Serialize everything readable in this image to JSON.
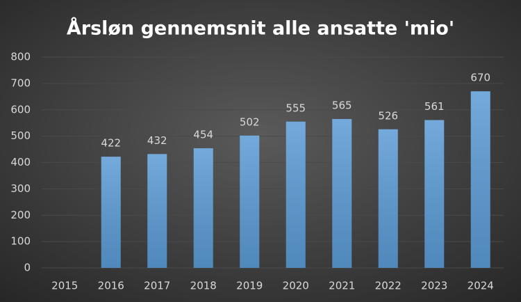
{
  "chart_data": {
    "type": "bar",
    "title": "Årsløn gennemsnit alle ansatte 'mio'",
    "categories": [
      "2015",
      "2016",
      "2017",
      "2018",
      "2019",
      "2020",
      "2021",
      "2022",
      "2023",
      "2024"
    ],
    "values": [
      null,
      422,
      432,
      454,
      502,
      555,
      565,
      526,
      561,
      670
    ],
    "color": "#5b9bd5",
    "ylim": [
      0,
      800
    ],
    "yticks": [
      0,
      100,
      200,
      300,
      400,
      500,
      600,
      700,
      800
    ],
    "grid": true
  }
}
